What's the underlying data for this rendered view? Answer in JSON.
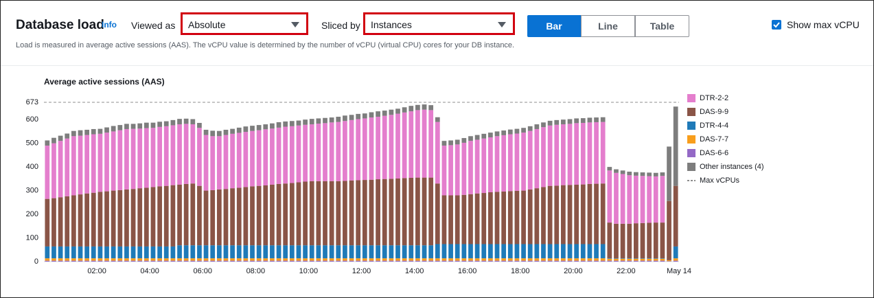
{
  "header": {
    "title": "Database load",
    "info": "Info",
    "viewed_as_label": "Viewed as",
    "viewed_as_value": "Absolute",
    "sliced_by_label": "Sliced by",
    "sliced_by_value": "Instances",
    "view_buttons": [
      "Bar",
      "Line",
      "Table"
    ],
    "selected_view": 0,
    "show_max_vcpu_label": "Show max vCPU",
    "show_max_vcpu": true,
    "description": "Load is measured in average active sessions (AAS). The vCPU value is determined by the number of vCPU (virtual CPU) cores for your DB instance."
  },
  "chart_data": {
    "type": "bar",
    "stacked": true,
    "title": "Average active sessions (AAS)",
    "x": [
      0,
      0.25,
      0.5,
      0.75,
      1,
      1.25,
      1.5,
      1.75,
      2,
      2.25,
      2.5,
      2.75,
      3,
      3.25,
      3.5,
      3.75,
      4,
      4.25,
      4.5,
      4.75,
      5,
      5.25,
      5.5,
      5.75,
      6,
      6.25,
      6.5,
      6.75,
      7,
      7.25,
      7.5,
      7.75,
      8,
      8.25,
      8.5,
      8.75,
      9,
      9.25,
      9.5,
      9.75,
      10,
      10.25,
      10.5,
      10.75,
      11,
      11.25,
      11.5,
      11.75,
      12,
      12.25,
      12.5,
      12.75,
      13,
      13.25,
      13.5,
      13.75,
      14,
      14.25,
      14.5,
      14.75,
      15,
      15.25,
      15.5,
      15.75,
      16,
      16.25,
      16.5,
      16.75,
      17,
      17.25,
      17.5,
      17.75,
      18,
      18.25,
      18.5,
      18.75,
      19,
      19.25,
      19.5,
      19.75,
      20,
      20.25,
      20.5,
      20.75,
      21,
      21.25,
      21.5,
      21.75,
      22,
      22.25,
      22.5,
      22.75,
      23,
      23.25,
      23.5,
      23.75
    ],
    "xlim": [
      0,
      24
    ],
    "xticks": [
      {
        "value": 2,
        "label": "02:00"
      },
      {
        "value": 4,
        "label": "04:00"
      },
      {
        "value": 6,
        "label": "06:00"
      },
      {
        "value": 8,
        "label": "08:00"
      },
      {
        "value": 10,
        "label": "10:00"
      },
      {
        "value": 12,
        "label": "12:00"
      },
      {
        "value": 14,
        "label": "14:00"
      },
      {
        "value": 16,
        "label": "16:00"
      },
      {
        "value": 18,
        "label": "18:00"
      },
      {
        "value": 20,
        "label": "20:00"
      },
      {
        "value": 22,
        "label": "22:00"
      },
      {
        "value": 24,
        "label": "May 14"
      }
    ],
    "ylim": [
      0,
      673
    ],
    "yticks": [
      0,
      100,
      200,
      300,
      400,
      500,
      600,
      673
    ],
    "max_vcpu": 673,
    "max_vcpu_label": "Max vCPUs",
    "max_vcpu_color": "#8d8d8d",
    "series": [
      {
        "name": "DTR-2-2",
        "color": "#e47ecd",
        "values": [
          225,
          232,
          238,
          244,
          250,
          248,
          247,
          247,
          245,
          248,
          250,
          253,
          255,
          254,
          252,
          252,
          250,
          251,
          252,
          253,
          255,
          254,
          250,
          245,
          235,
          228,
          225,
          228,
          230,
          232,
          233,
          234,
          235,
          237,
          237,
          238,
          240,
          240,
          240,
          240,
          240,
          243,
          245,
          248,
          250,
          253,
          255,
          258,
          260,
          263,
          264,
          267,
          270,
          274,
          277,
          281,
          285,
          287,
          285,
          260,
          210,
          212,
          215,
          220,
          225,
          227,
          230,
          232,
          235,
          238,
          240,
          242,
          245,
          247,
          250,
          253,
          255,
          257,
          257,
          258,
          260,
          260,
          260,
          260,
          260,
          220,
          215,
          210,
          205,
          201,
          199,
          197,
          195,
          197,
          0,
          0
        ]
      },
      {
        "name": "DAS-9-9",
        "color": "#8a5547",
        "values": [
          201,
          204,
          208,
          212,
          216,
          220,
          224,
          227,
          231,
          233,
          236,
          238,
          241,
          243,
          246,
          248,
          251,
          254,
          256,
          259,
          256,
          259,
          261,
          251,
          231,
          233,
          236,
          238,
          241,
          243,
          246,
          249,
          251,
          253,
          256,
          259,
          261,
          263,
          266,
          269,
          271,
          271,
          271,
          271,
          271,
          272,
          274,
          275,
          276,
          277,
          279,
          280,
          281,
          282,
          284,
          285,
          286,
          286,
          286,
          256,
          206,
          206,
          206,
          208,
          211,
          214,
          216,
          219,
          221,
          222,
          224,
          225,
          226,
          231,
          236,
          241,
          246,
          247,
          249,
          250,
          251,
          252,
          254,
          255,
          256,
          151,
          146,
          146,
          146,
          148,
          149,
          150,
          151,
          151,
          250,
          256
        ]
      },
      {
        "name": "DTR-4-4",
        "color": "#1f7ab8",
        "values": [
          50,
          50,
          50,
          50,
          50,
          50,
          50,
          50,
          50,
          50,
          50,
          50,
          50,
          50,
          50,
          50,
          50,
          50,
          50,
          50,
          55,
          55,
          55,
          55,
          55,
          55,
          55,
          55,
          55,
          55,
          55,
          55,
          55,
          55,
          55,
          55,
          55,
          55,
          55,
          55,
          55,
          55,
          55,
          55,
          55,
          55,
          55,
          55,
          55,
          55,
          55,
          55,
          55,
          55,
          55,
          55,
          55,
          55,
          55,
          60,
          60,
          60,
          60,
          60,
          60,
          60,
          60,
          60,
          60,
          60,
          60,
          60,
          60,
          60,
          60,
          60,
          60,
          60,
          60,
          60,
          60,
          60,
          60,
          60,
          60,
          2,
          2,
          2,
          2,
          2,
          2,
          2,
          2,
          2,
          0,
          50
        ]
      },
      {
        "name": "DAS-7-7",
        "color": "#f89e1c",
        "values": [
          10,
          10,
          10,
          10,
          10,
          10,
          10,
          10,
          10,
          10,
          10,
          10,
          10,
          10,
          10,
          10,
          10,
          10,
          10,
          10,
          10,
          10,
          10,
          10,
          10,
          10,
          10,
          10,
          10,
          10,
          10,
          10,
          10,
          10,
          10,
          10,
          10,
          10,
          10,
          10,
          10,
          10,
          10,
          10,
          10,
          10,
          10,
          10,
          10,
          10,
          10,
          10,
          10,
          10,
          10,
          10,
          10,
          10,
          10,
          10,
          10,
          10,
          10,
          10,
          10,
          10,
          10,
          10,
          10,
          10,
          10,
          10,
          10,
          10,
          10,
          10,
          10,
          10,
          10,
          10,
          10,
          10,
          10,
          10,
          10,
          8,
          8,
          8,
          8,
          8,
          8,
          8,
          8,
          8,
          4,
          10
        ]
      },
      {
        "name": "DAS-6-6",
        "color": "#9469c6",
        "values": [
          4,
          4,
          4,
          4,
          4,
          4,
          4,
          4,
          4,
          4,
          4,
          4,
          4,
          4,
          4,
          4,
          4,
          4,
          4,
          4,
          4,
          4,
          4,
          4,
          4,
          4,
          4,
          4,
          4,
          4,
          4,
          4,
          4,
          4,
          4,
          4,
          4,
          4,
          4,
          4,
          4,
          4,
          4,
          4,
          4,
          4,
          4,
          4,
          4,
          4,
          4,
          4,
          4,
          4,
          4,
          4,
          4,
          4,
          4,
          4,
          4,
          4,
          4,
          4,
          4,
          4,
          4,
          4,
          4,
          4,
          4,
          4,
          4,
          4,
          4,
          4,
          4,
          4,
          4,
          4,
          4,
          4,
          4,
          4,
          4,
          4,
          4,
          4,
          4,
          4,
          4,
          4,
          4,
          4,
          2,
          4
        ]
      },
      {
        "name": "Other instances (4)",
        "color": "#7d7d7d",
        "values": [
          22,
          23,
          22,
          21,
          22,
          23,
          22,
          22,
          21,
          22,
          23,
          22,
          22,
          21,
          22,
          23,
          22,
          22,
          21,
          22,
          23,
          22,
          22,
          21,
          22,
          23,
          22,
          22,
          21,
          22,
          23,
          22,
          22,
          21,
          22,
          23,
          22,
          22,
          21,
          22,
          23,
          22,
          22,
          21,
          22,
          23,
          22,
          22,
          21,
          22,
          23,
          22,
          22,
          21,
          22,
          23,
          22,
          22,
          21,
          20,
          20,
          20,
          20,
          20,
          20,
          20,
          20,
          20,
          20,
          20,
          20,
          20,
          20,
          20,
          20,
          20,
          20,
          20,
          20,
          20,
          20,
          20,
          20,
          20,
          20,
          15,
          15,
          15,
          15,
          15,
          15,
          15,
          15,
          15,
          230,
          335
        ]
      }
    ]
  }
}
